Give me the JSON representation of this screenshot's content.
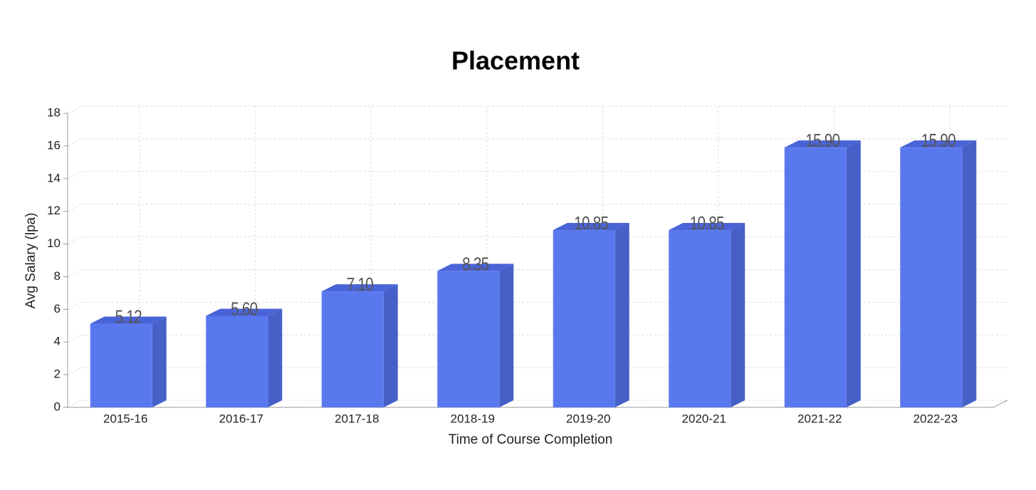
{
  "chart_data": {
    "type": "bar3d",
    "title": "Placement",
    "x_label": "Time of Course Completion",
    "y_label": "Avg Salary (lpa)",
    "categories": [
      "2015-16",
      "2016-17",
      "2017-18",
      "2018-19",
      "2019-20",
      "2020-21",
      "2021-22",
      "2022-23"
    ],
    "values": [
      5.12,
      5.6,
      7.1,
      8.35,
      10.85,
      10.85,
      15.9,
      15.9
    ],
    "value_labels": [
      "5.12",
      "5.60",
      "7.10",
      "8.35",
      "10.85",
      "10.85",
      "15.90",
      "15.90"
    ],
    "color": "#5a78ee",
    "ylim": [
      0,
      18
    ],
    "yticks": [
      0,
      2,
      4,
      6,
      8,
      10,
      12,
      14,
      16,
      18
    ],
    "grid": true
  }
}
